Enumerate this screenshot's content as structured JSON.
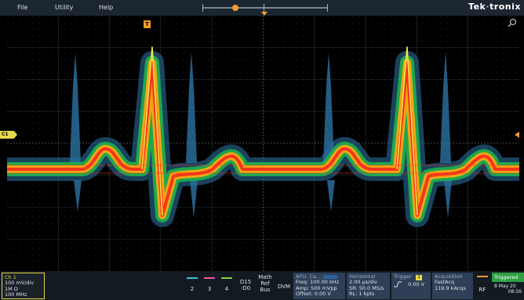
{
  "menu": {
    "file": "File",
    "utility": "Utility",
    "help": "Help",
    "brand_main": "Tek",
    "brand_rest": "tronix"
  },
  "screen": {
    "channel_marker": "C1",
    "trigger_marker_label": "T",
    "trace_colors": [
      "#2a6d9a",
      "#1eb34b",
      "#f2a615",
      "#f5361c",
      "#f0e64a"
    ]
  },
  "bottom": {
    "ch1": {
      "title": "Ch 1",
      "scale": "100 mV/div",
      "impedance": "1M Ω",
      "bandwidth": "100 MHz",
      "color": "#e6d84b"
    },
    "ch_buttons": [
      {
        "label": "2",
        "color": "#38c3e0"
      },
      {
        "label": "3",
        "color": "#e55aa0"
      },
      {
        "label": "4",
        "color": "#8ed14a"
      }
    ],
    "d15": {
      "line1": "D15",
      "line2": "-D0"
    },
    "math": {
      "line1": "Math",
      "line2": "Ref",
      "line3": "Bus"
    },
    "dvm": "DVM",
    "afg": {
      "title": "AFG: Ca...",
      "freq": "Freq: 100.00 kHz",
      "amp": "Amp: 500 mVpp",
      "offset": "Offset: 0.00 V"
    },
    "horizontal": {
      "title": "Horizontal",
      "timebase": "2.00 µs/div",
      "sr": "SR: 50.0 MS/s",
      "rl": "RL: 1 kpts"
    },
    "trigger": {
      "title": "Trigger",
      "level": "0.00 V",
      "channel": "1"
    },
    "acquisition": {
      "title": "Acquisition",
      "mode": "FastAcq",
      "rate": "119.9 kAcqs"
    },
    "rf": "RF",
    "status": {
      "state": "Triggered",
      "date": "8 May 20",
      "time": "08:56"
    }
  }
}
